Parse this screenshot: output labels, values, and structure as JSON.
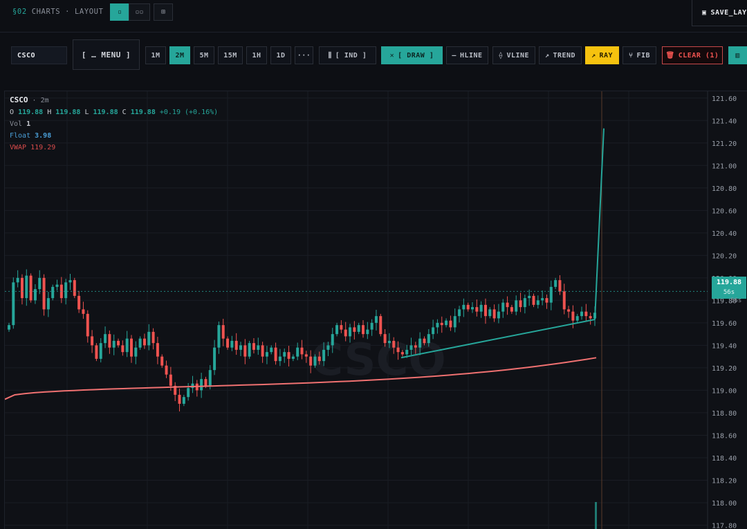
{
  "header": {
    "section": "§02",
    "breadcrumb": "CHARTS · LAYOUT",
    "layouts": [
      {
        "id": "single",
        "glyph": "▫",
        "active": true
      },
      {
        "id": "dual",
        "glyph": "▫▫",
        "active": false
      },
      {
        "id": "grid",
        "glyph": "⊞",
        "active": false
      }
    ],
    "save_label": "SAVE_LAYOUT"
  },
  "toolbar": {
    "symbol": "CSCO",
    "menu_label": "[ … MENU ]",
    "timeframes": [
      {
        "label": "1M",
        "active": false
      },
      {
        "label": "2M",
        "active": true
      },
      {
        "label": "5M",
        "active": false
      },
      {
        "label": "15M",
        "active": false
      },
      {
        "label": "1H",
        "active": false
      },
      {
        "label": "1D",
        "active": false
      }
    ],
    "more_label": "···",
    "ind_label": "[ IND ]",
    "draw_label": "[ DRAW ]",
    "hline_label": "HLINE",
    "vline_label": "VLINE",
    "trend_label": "TREND",
    "ray_label": "RAY",
    "fib_label": "FIB",
    "clear_label": "CLEAR (1)"
  },
  "legend": {
    "symbol": "CSCO",
    "timeframe": "· 2m",
    "o_label": "O",
    "o": "119.88",
    "h_label": "H",
    "h": "119.88",
    "l_label": "L",
    "l": "119.88",
    "c_label": "C",
    "c": "119.88",
    "change": "+0.19 (+0.16%)",
    "vol_label": "Vol",
    "vol": "1",
    "float_label": "Float",
    "float": "3.98",
    "vwap_label": "VWAP",
    "vwap": "119.29"
  },
  "price_tag": {
    "price": "119.88",
    "countdown": "56s"
  },
  "watermark": "CSCO",
  "colors": {
    "up": "#26a69a",
    "down": "#ef5350",
    "vwap": "#f07171",
    "trend": "#26a69a",
    "accent": "#26a69a",
    "ray": "#f6c20f"
  },
  "chart_data": {
    "type": "candlestick",
    "y_ticks": [
      "121.60",
      "121.40",
      "121.20",
      "121.00",
      "120.80",
      "120.60",
      "120.40",
      "120.20",
      "120.00",
      "119.80",
      "119.60",
      "119.40",
      "119.20",
      "119.00",
      "118.80",
      "118.60",
      "118.40",
      "118.20",
      "118.00",
      "117.80"
    ],
    "ylim": [
      117.76,
      121.66
    ],
    "current_price": 119.88,
    "vwap_range": [
      118.92,
      119.29
    ],
    "trend_line": {
      "start": 119.29,
      "end": 119.63,
      "ray_end": 121.33
    },
    "closes": [
      119.58,
      119.96,
      120.0,
      119.82,
      120.02,
      119.8,
      119.9,
      120.0,
      119.72,
      119.82,
      119.92,
      119.94,
      119.82,
      119.96,
      119.98,
      119.84,
      119.72,
      119.68,
      119.48,
      119.4,
      119.28,
      119.42,
      119.5,
      119.38,
      119.44,
      119.4,
      119.34,
      119.46,
      119.3,
      119.38,
      119.46,
      119.4,
      119.52,
      119.42,
      119.3,
      119.22,
      119.14,
      119.04,
      118.96,
      118.88,
      118.94,
      119.02,
      119.06,
      119.0,
      119.1,
      119.04,
      119.18,
      119.38,
      119.58,
      119.46,
      119.38,
      119.44,
      119.36,
      119.4,
      119.3,
      119.42,
      119.36,
      119.4,
      119.3,
      119.34,
      119.38,
      119.26,
      119.3,
      119.34,
      119.28,
      119.3,
      119.38,
      119.32,
      119.3,
      119.22,
      119.3,
      119.26,
      119.36,
      119.4,
      119.5,
      119.58,
      119.54,
      119.48,
      119.56,
      119.52,
      119.58,
      119.5,
      119.54,
      119.6,
      119.66,
      119.5,
      119.42,
      119.44,
      119.38,
      119.34,
      119.32,
      119.36,
      119.4,
      119.38,
      119.46,
      119.42,
      119.5,
      119.56,
      119.6,
      119.58,
      119.62,
      119.56,
      119.66,
      119.72,
      119.76,
      119.72,
      119.74,
      119.7,
      119.76,
      119.66,
      119.72,
      119.64,
      119.7,
      119.78,
      119.74,
      119.7,
      119.8,
      119.74,
      119.82,
      119.84,
      119.76,
      119.8,
      119.82,
      119.78,
      119.92,
      119.98,
      119.88,
      119.72,
      119.7,
      119.62,
      119.66,
      119.7,
      119.66,
      119.64,
      119.69
    ]
  }
}
